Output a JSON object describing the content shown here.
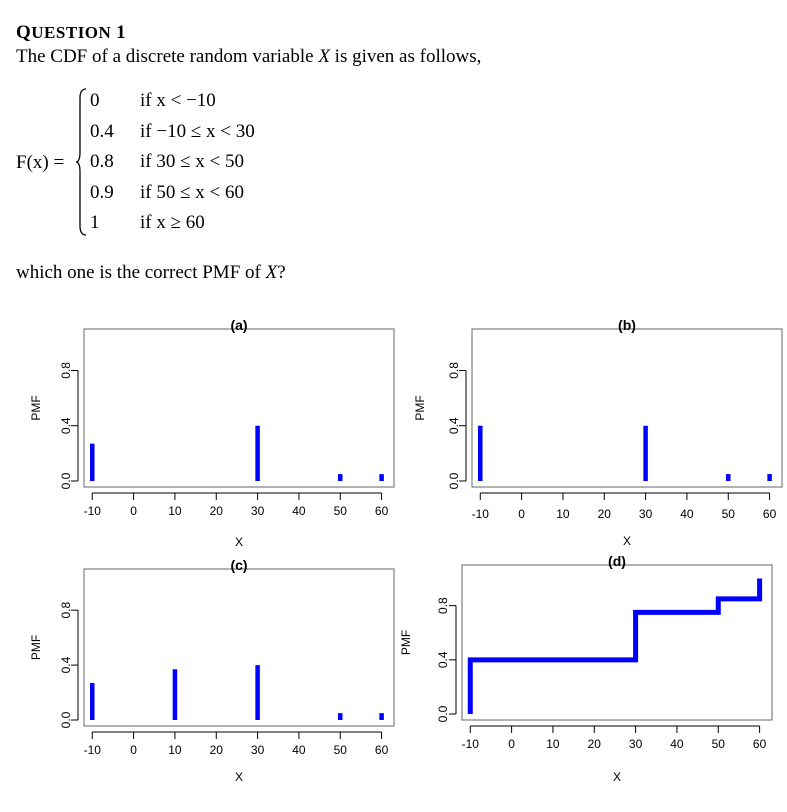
{
  "heading": {
    "first_letter": "Q",
    "rest": "UESTION",
    "number": "1"
  },
  "intro": {
    "part1": "The CDF of a discrete random variable ",
    "var": "X",
    "part2": " is given as follows,"
  },
  "cdf": {
    "lhs": "F(x) =",
    "cases": [
      {
        "value": "0",
        "condition": "if x < −10"
      },
      {
        "value": "0.4",
        "condition": "if −10 ≤ x < 30"
      },
      {
        "value": "0.8",
        "condition": "if 30 ≤ x < 50"
      },
      {
        "value": "0.9",
        "condition": "if 50 ≤ x < 60"
      },
      {
        "value": "1",
        "condition": "if x ≥ 60"
      }
    ]
  },
  "question": {
    "part1": "which one is the correct PMF of ",
    "var": "X",
    "part2": "?"
  },
  "colors": {
    "series": "#0000ff",
    "axis": "#000000",
    "frame": "#666666"
  },
  "chart_data": [
    {
      "panel": "a",
      "type": "bar",
      "title": "(a)",
      "xlabel": "X",
      "ylabel": "PMF",
      "x": [
        -10,
        30,
        50,
        60
      ],
      "values": [
        0.27,
        0.4,
        0.05,
        0.05
      ],
      "xticks": [
        "-10",
        "0",
        "10",
        "20",
        "30",
        "40",
        "50",
        "60"
      ],
      "yticks": [
        "0.0",
        "0.4",
        "0.8"
      ],
      "xlim": [
        -12,
        63
      ],
      "ylim": [
        0,
        1.1
      ]
    },
    {
      "panel": "b",
      "type": "bar",
      "title": "(b)",
      "xlabel": "X",
      "ylabel": "PMF",
      "x": [
        -10,
        30,
        50,
        60
      ],
      "values": [
        0.4,
        0.4,
        0.05,
        0.05
      ],
      "xticks": [
        "-10",
        "0",
        "10",
        "20",
        "30",
        "40",
        "50",
        "60"
      ],
      "yticks": [
        "0.0",
        "0.4",
        "0.8"
      ],
      "xlim": [
        -12,
        63
      ],
      "ylim": [
        0,
        1.1
      ]
    },
    {
      "panel": "c",
      "type": "bar",
      "title": "(c)",
      "xlabel": "X",
      "ylabel": "PMF",
      "x": [
        -10,
        10,
        30,
        50,
        60
      ],
      "values": [
        0.27,
        0.37,
        0.4,
        0.05,
        0.05
      ],
      "xticks": [
        "-10",
        "0",
        "10",
        "20",
        "30",
        "40",
        "50",
        "60"
      ],
      "yticks": [
        "0.0",
        "0.4",
        "0.8"
      ],
      "xlim": [
        -12,
        63
      ],
      "ylim": [
        0,
        1.1
      ]
    },
    {
      "panel": "d",
      "type": "line",
      "title": "(d)",
      "xlabel": "X",
      "ylabel": "PMF",
      "x": [
        -10,
        -10,
        30,
        30,
        50,
        50,
        60,
        60
      ],
      "values": [
        0,
        0.4,
        0.4,
        0.75,
        0.75,
        0.85,
        0.85,
        1.0
      ],
      "xticks": [
        "-10",
        "0",
        "10",
        "20",
        "30",
        "40",
        "50",
        "60"
      ],
      "yticks": [
        "0.0",
        "0.4",
        "0.8"
      ],
      "xlim": [
        -12,
        63
      ],
      "ylim": [
        0,
        1.1
      ]
    }
  ]
}
